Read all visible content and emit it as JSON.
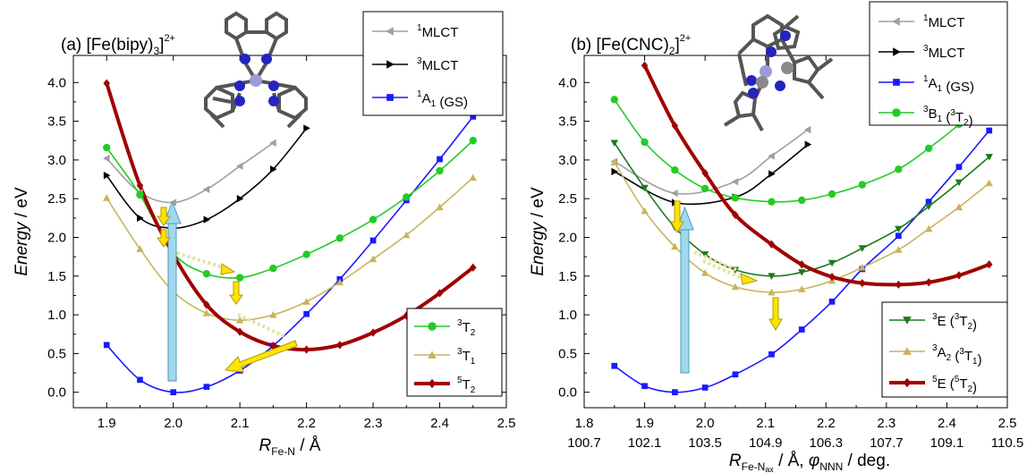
{
  "chart_data": [
    {
      "type": "line",
      "panel_label": "(a)",
      "complex": "[Fe(bipy)3]2+",
      "xlabel": "R_Fe-N / Å",
      "ylabel": "Energy / eV",
      "xlim": [
        1.85,
        2.5
      ],
      "ylim": [
        -0.2,
        4.35
      ],
      "xticks": [
        "1.9",
        "2.0",
        "2.1",
        "2.2",
        "2.3",
        "2.4",
        "2.5"
      ],
      "yticks": [
        "0.0",
        "0.5",
        "1.0",
        "1.5",
        "2.0",
        "2.5",
        "3.0",
        "3.5",
        "4.0"
      ],
      "legend_top": [
        "1MLCT",
        "3MLCT",
        "1A1 (GS)"
      ],
      "legend_bottom": [
        "3T2",
        "3T1",
        "5T2"
      ],
      "series": [
        {
          "name": "1MLCT",
          "color": "#a0a0a0",
          "marker": "triangle-left",
          "x": [
            1.9,
            1.95,
            2.0,
            2.05,
            2.1,
            2.15
          ],
          "y": [
            3.02,
            2.58,
            2.45,
            2.62,
            2.92,
            3.22
          ]
        },
        {
          "name": "3MLCT",
          "color": "#000000",
          "marker": "triangle-right",
          "x": [
            1.9,
            1.95,
            2.0,
            2.05,
            2.1,
            2.15,
            2.2
          ],
          "y": [
            2.8,
            2.25,
            2.12,
            2.23,
            2.5,
            2.88,
            3.41
          ]
        },
        {
          "name": "1A1 (GS)",
          "color": "#1a1aff",
          "marker": "square",
          "x": [
            1.9,
            1.95,
            2.0,
            2.05,
            2.1,
            2.15,
            2.2,
            2.25,
            2.3,
            2.35,
            2.4,
            2.45
          ],
          "y": [
            0.61,
            0.16,
            0.0,
            0.07,
            0.28,
            0.6,
            1.01,
            1.46,
            1.96,
            2.48,
            3.01,
            3.56
          ]
        },
        {
          "name": "3T2",
          "color": "#22cc22",
          "marker": "circle",
          "x": [
            1.9,
            1.95,
            2.0,
            2.05,
            2.1,
            2.15,
            2.2,
            2.25,
            2.3,
            2.35,
            2.4,
            2.45
          ],
          "y": [
            3.16,
            2.55,
            1.8,
            1.53,
            1.48,
            1.6,
            1.78,
            1.99,
            2.23,
            2.52,
            2.86,
            3.25
          ]
        },
        {
          "name": "3T1",
          "color": "#c8b45a",
          "marker": "triangle-up",
          "x": [
            1.9,
            1.95,
            2.0,
            2.05,
            2.1,
            2.15,
            2.2,
            2.25,
            2.3,
            2.35,
            2.4,
            2.45
          ],
          "y": [
            2.51,
            1.85,
            1.3,
            1.02,
            0.93,
            1.0,
            1.17,
            1.42,
            1.72,
            2.03,
            2.39,
            2.77
          ]
        },
        {
          "name": "5T2",
          "color": "#a00000",
          "marker": "diamond",
          "x": [
            1.9,
            1.95,
            2.0,
            2.05,
            2.1,
            2.15,
            2.2,
            2.25,
            2.3,
            2.35,
            2.4,
            2.45
          ],
          "y": [
            3.99,
            2.67,
            1.78,
            1.13,
            0.78,
            0.6,
            0.55,
            0.61,
            0.77,
            0.99,
            1.28,
            1.61
          ]
        }
      ]
    },
    {
      "type": "line",
      "panel_label": "(b)",
      "complex": "[Fe(CNC)2]2+",
      "xlabel": "R_Fe-Nax / Å, φ_NNN / deg.",
      "ylabel": "Energy / eV",
      "xlim": [
        1.8,
        2.5
      ],
      "ylim": [
        -0.2,
        4.35
      ],
      "xticks": [
        "1.8",
        "1.9",
        "2.0",
        "2.1",
        "2.2",
        "2.3",
        "2.4",
        "2.5"
      ],
      "xticks_secondary": [
        "100.7",
        "102.1",
        "103.5",
        "104.9",
        "106.3",
        "107.7",
        "109.1",
        "110.5"
      ],
      "yticks": [
        "0.0",
        "0.5",
        "1.0",
        "1.5",
        "2.0",
        "2.5",
        "3.0",
        "3.5",
        "4.0"
      ],
      "legend_top": [
        "1MLCT",
        "3MLCT",
        "1A1 (GS)",
        "3B1 (3T2)"
      ],
      "legend_bottom": [
        "3E (3T2)",
        "3A2 (3T1)",
        "5E (5T2)"
      ],
      "series": [
        {
          "name": "1MLCT",
          "color": "#a0a0a0",
          "marker": "triangle-left",
          "x": [
            1.85,
            1.95,
            2.05,
            2.11,
            2.17
          ],
          "y": [
            2.98,
            2.57,
            2.72,
            3.05,
            3.39
          ]
        },
        {
          "name": "3MLCT",
          "color": "#000000",
          "marker": "triangle-right",
          "x": [
            1.85,
            1.95,
            2.05,
            2.11,
            2.17
          ],
          "y": [
            2.85,
            2.45,
            2.52,
            2.82,
            3.2
          ]
        },
        {
          "name": "1A1 (GS)",
          "color": "#1a1aff",
          "marker": "square",
          "x": [
            1.85,
            1.9,
            1.95,
            2.0,
            2.05,
            2.11,
            2.16,
            2.21,
            2.26,
            2.32,
            2.37,
            2.42,
            2.47
          ],
          "y": [
            0.34,
            0.08,
            0.0,
            0.06,
            0.23,
            0.49,
            0.81,
            1.17,
            1.59,
            2.02,
            2.46,
            2.91,
            3.38
          ]
        },
        {
          "name": "3B1 (3T2)",
          "color": "#22cc22",
          "marker": "circle",
          "x": [
            1.85,
            1.9,
            1.95,
            2.0,
            2.05,
            2.11,
            2.16,
            2.21,
            2.26,
            2.32,
            2.37,
            2.42,
            2.47
          ],
          "y": [
            3.78,
            3.23,
            2.87,
            2.63,
            2.51,
            2.46,
            2.48,
            2.56,
            2.68,
            2.88,
            3.15,
            3.46,
            3.85
          ]
        },
        {
          "name": "3E (3T2)",
          "color": "#1b7a1b",
          "marker": "triangle-down",
          "x": [
            1.85,
            1.9,
            1.95,
            2.0,
            2.05,
            2.11,
            2.16,
            2.21,
            2.26,
            2.32,
            2.37,
            2.42,
            2.47
          ],
          "y": [
            3.22,
            2.64,
            2.13,
            1.78,
            1.58,
            1.5,
            1.55,
            1.67,
            1.86,
            2.11,
            2.4,
            2.71,
            3.04
          ]
        },
        {
          "name": "3A2 (3T1)",
          "color": "#c8b45a",
          "marker": "triangle-up",
          "x": [
            1.85,
            1.9,
            1.95,
            2.0,
            2.05,
            2.11,
            2.16,
            2.21,
            2.26,
            2.32,
            2.37,
            2.42,
            2.47
          ],
          "y": [
            2.97,
            2.34,
            1.88,
            1.54,
            1.36,
            1.29,
            1.33,
            1.44,
            1.61,
            1.84,
            2.11,
            2.39,
            2.7
          ]
        },
        {
          "name": "5E (5T2)",
          "color": "#a00000",
          "marker": "diamond",
          "x": [
            1.9,
            1.95,
            2.0,
            2.05,
            2.11,
            2.16,
            2.21,
            2.26,
            2.32,
            2.37,
            2.42,
            2.47
          ],
          "y": [
            4.22,
            3.44,
            2.83,
            2.29,
            1.91,
            1.65,
            1.49,
            1.41,
            1.39,
            1.42,
            1.51,
            1.65
          ]
        }
      ]
    }
  ]
}
